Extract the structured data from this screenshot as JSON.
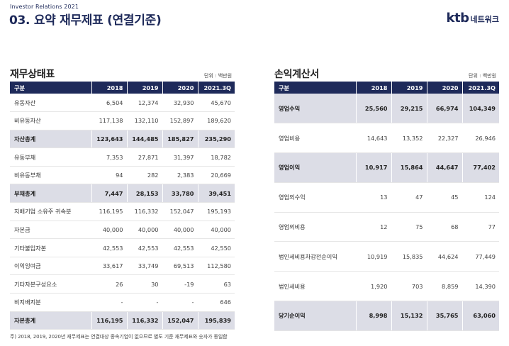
{
  "header": {
    "subtitle": "Investor Relations 2021",
    "title": "03. 요약 재무제표 (연결기준)",
    "logo_brand": "ktb",
    "logo_sub": "네트워크"
  },
  "balance_sheet": {
    "title": "재무상태표",
    "unit": "단위 : 백만원",
    "columns": [
      "구분",
      "2018",
      "2019",
      "2020",
      "2021.3Q"
    ],
    "rows": [
      {
        "label": "유동자산",
        "values": [
          "6,504",
          "12,374",
          "32,930",
          "45,670"
        ],
        "highlight": false
      },
      {
        "label": "비유동자산",
        "values": [
          "117,138",
          "132,110",
          "152,897",
          "189,620"
        ],
        "highlight": false
      },
      {
        "label": "자산총계",
        "values": [
          "123,643",
          "144,485",
          "185,827",
          "235,290"
        ],
        "highlight": true
      },
      {
        "label": "유동부채",
        "values": [
          "7,353",
          "27,871",
          "31,397",
          "18,782"
        ],
        "highlight": false
      },
      {
        "label": "비유동부채",
        "values": [
          "94",
          "282",
          "2,383",
          "20,669"
        ],
        "highlight": false
      },
      {
        "label": "부채총계",
        "values": [
          "7,447",
          "28,153",
          "33,780",
          "39,451"
        ],
        "highlight": true
      },
      {
        "label": "지배기업 소유주 귀속분",
        "values": [
          "116,195",
          "116,332",
          "152,047",
          "195,193"
        ],
        "highlight": false
      },
      {
        "label": "자본금",
        "values": [
          "40,000",
          "40,000",
          "40,000",
          "40,000"
        ],
        "highlight": false
      },
      {
        "label": "기타불입자본",
        "values": [
          "42,553",
          "42,553",
          "42,553",
          "42,550"
        ],
        "highlight": false
      },
      {
        "label": "이익잉여금",
        "values": [
          "33,617",
          "33,749",
          "69,513",
          "112,580"
        ],
        "highlight": false
      },
      {
        "label": "기타자본구성요소",
        "values": [
          "26",
          "30",
          "-19",
          "63"
        ],
        "highlight": false
      },
      {
        "label": "비지배지분",
        "values": [
          "-",
          "-",
          "-",
          "646"
        ],
        "highlight": false
      },
      {
        "label": "자본총계",
        "values": [
          "116,195",
          "116,332",
          "152,047",
          "195,839"
        ],
        "highlight": true
      }
    ]
  },
  "income_statement": {
    "title": "손익계산서",
    "unit": "단위 : 백만원",
    "columns": [
      "구분",
      "2018",
      "2019",
      "2020",
      "2021.3Q"
    ],
    "rows": [
      {
        "label": "영업수익",
        "values": [
          "25,560",
          "29,215",
          "66,974",
          "104,349"
        ],
        "highlight": true
      },
      {
        "label": "영업비용",
        "values": [
          "14,643",
          "13,352",
          "22,327",
          "26,946"
        ],
        "highlight": false
      },
      {
        "label": "영업이익",
        "values": [
          "10,917",
          "15,864",
          "44,647",
          "77,402"
        ],
        "highlight": true
      },
      {
        "label": "영업외수익",
        "values": [
          "13",
          "47",
          "45",
          "124"
        ],
        "highlight": false
      },
      {
        "label": "영업외비용",
        "values": [
          "12",
          "75",
          "68",
          "77"
        ],
        "highlight": false
      },
      {
        "label": "법인세비용차감전순이익",
        "values": [
          "10,919",
          "15,835",
          "44,624",
          "77,449"
        ],
        "highlight": false
      },
      {
        "label": "법인세비용",
        "values": [
          "1,920",
          "703",
          "8,859",
          "14,390"
        ],
        "highlight": false
      },
      {
        "label": "당기순이익",
        "values": [
          "8,998",
          "15,132",
          "35,765",
          "63,060"
        ],
        "highlight": true
      }
    ]
  },
  "footnote": "주) 2018, 2019, 2020년 재무제표는 연결대상 종속기업이 없으므로 별도 기준 재무제표와 숫자가 동일함"
}
